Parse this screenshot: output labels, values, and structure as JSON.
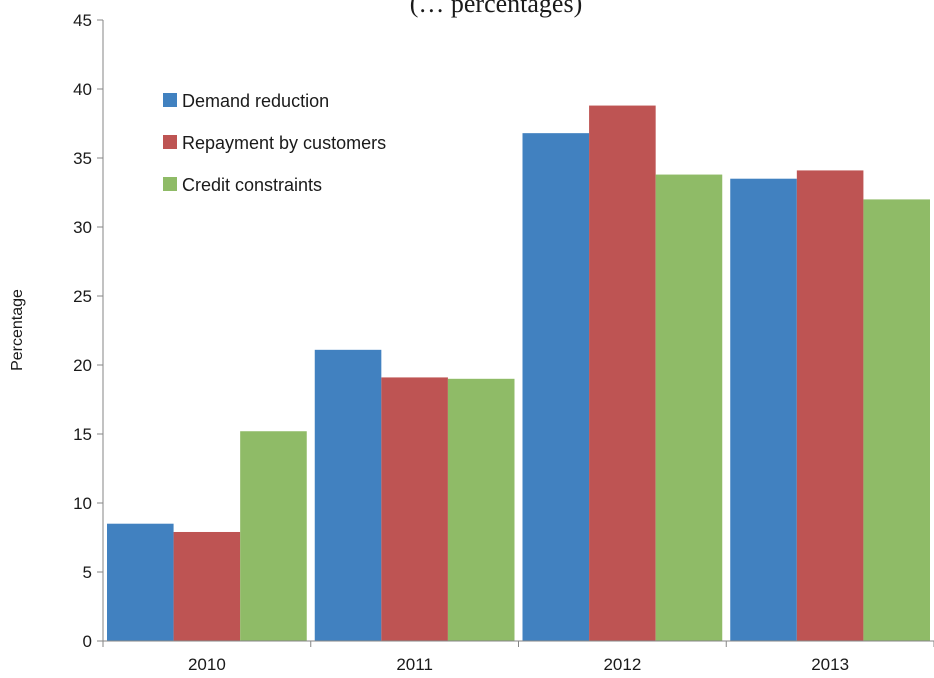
{
  "chart_data": {
    "type": "bar",
    "title": "(… percentages)",
    "xlabel": "",
    "ylabel": "Percentage",
    "ylim": [
      0,
      45
    ],
    "yticks": [
      0,
      5,
      10,
      15,
      20,
      25,
      30,
      35,
      40,
      45
    ],
    "categories": [
      "2010",
      "2011",
      "2012",
      "2013"
    ],
    "series": [
      {
        "name": "Demand reduction",
        "color": "#4181C0",
        "values": [
          8.5,
          21.1,
          36.8,
          33.5
        ]
      },
      {
        "name": "Repayment by customers",
        "color": "#BE5453",
        "values": [
          7.9,
          19.1,
          38.8,
          34.1
        ]
      },
      {
        "name": "Credit constraints",
        "color": "#8FBB67",
        "values": [
          15.2,
          19.0,
          33.8,
          32.0
        ]
      }
    ],
    "grid": false,
    "legend_position": "top-left"
  }
}
